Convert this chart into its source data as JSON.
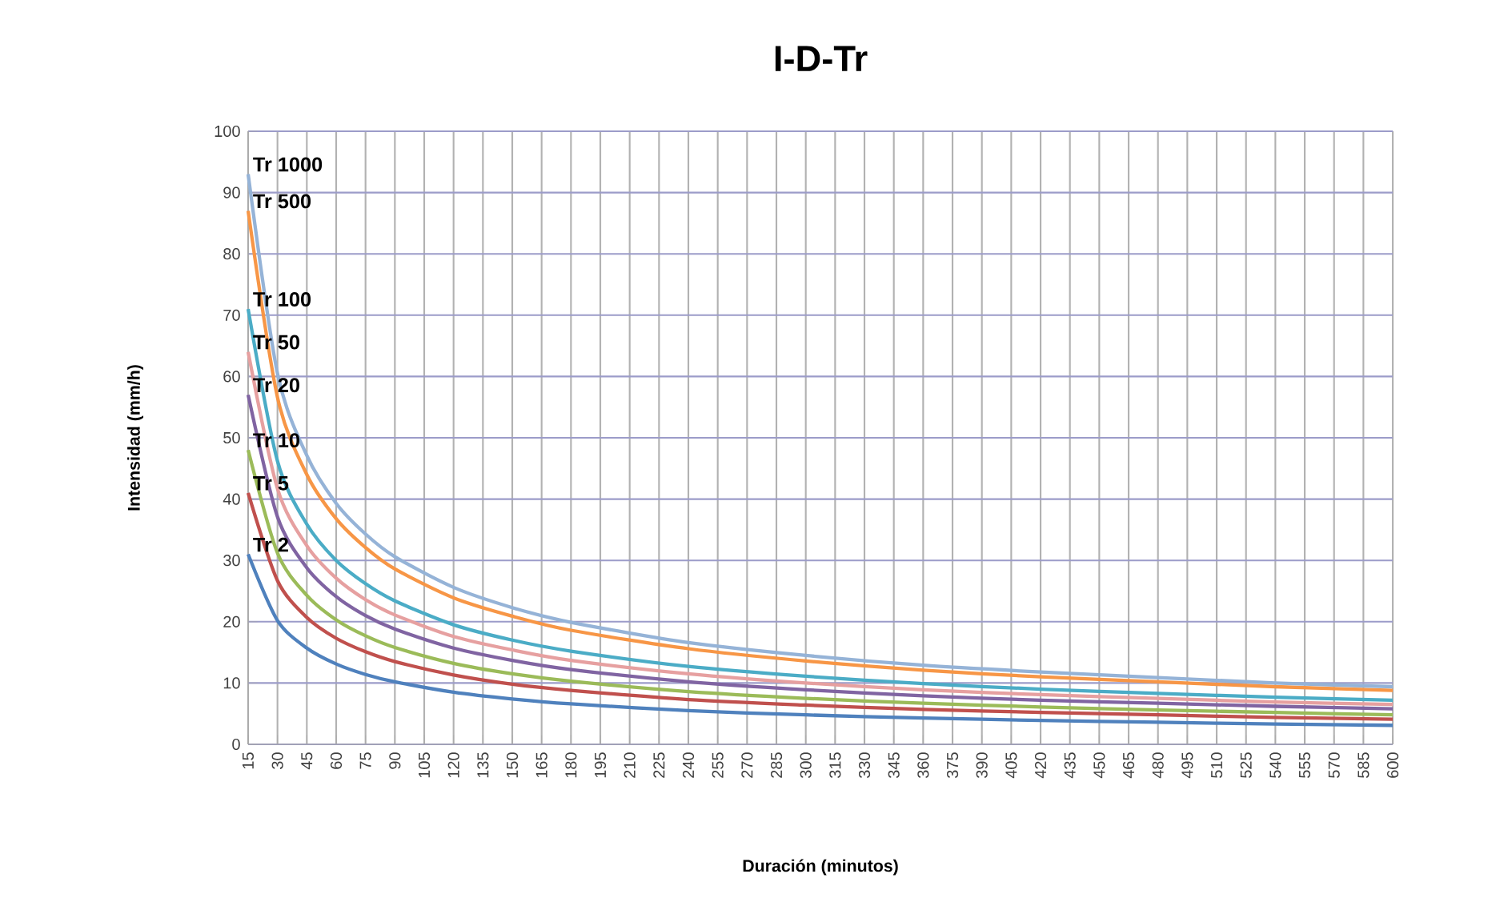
{
  "chart_data": {
    "type": "line",
    "title": "I-D-Tr",
    "xlabel": "Duración (minutos)",
    "ylabel": "Intensidad (mm/h)",
    "x": [
      15,
      30,
      45,
      60,
      75,
      90,
      120,
      150,
      180,
      240,
      300,
      360,
      420,
      480,
      540,
      600
    ],
    "xlim": [
      15,
      600
    ],
    "xticks": [
      15,
      30,
      45,
      60,
      75,
      90,
      105,
      120,
      135,
      150,
      165,
      180,
      195,
      210,
      225,
      240,
      255,
      270,
      285,
      300,
      315,
      330,
      345,
      360,
      375,
      390,
      405,
      420,
      435,
      450,
      465,
      480,
      495,
      510,
      525,
      540,
      555,
      570,
      585,
      600
    ],
    "ylim": [
      0,
      100
    ],
    "yticks": [
      0,
      10,
      20,
      30,
      40,
      50,
      60,
      70,
      80,
      90,
      100
    ],
    "grid": true,
    "series": [
      {
        "name": "Tr 2",
        "color": "#4f81bd",
        "values": [
          31,
          20.2,
          15.7,
          13.1,
          11.4,
          10.2,
          8.5,
          7.4,
          6.6,
          5.5,
          4.8,
          4.3,
          3.9,
          3.6,
          3.3,
          3.1
        ]
      },
      {
        "name": "Tr 5",
        "color": "#c0504d",
        "values": [
          41,
          26.7,
          20.7,
          17.3,
          15.1,
          13.5,
          11.3,
          9.8,
          8.8,
          7.3,
          6.4,
          5.7,
          5.2,
          4.8,
          4.4,
          4.1
        ]
      },
      {
        "name": "Tr 10",
        "color": "#9bbb59",
        "values": [
          48,
          31.2,
          24.3,
          20.3,
          17.7,
          15.8,
          13.2,
          11.5,
          10.3,
          8.6,
          7.5,
          6.7,
          6.1,
          5.6,
          5.2,
          4.8
        ]
      },
      {
        "name": "Tr 20",
        "color": "#8064a2",
        "values": [
          57,
          37.1,
          28.8,
          24.1,
          21.0,
          18.8,
          15.7,
          13.7,
          12.2,
          10.2,
          8.9,
          7.9,
          7.2,
          6.7,
          6.2,
          5.8
        ]
      },
      {
        "name": "Tr 50",
        "color": "#e6a0a0",
        "values": [
          64,
          41.7,
          32.4,
          27.1,
          23.6,
          21.1,
          17.6,
          15.4,
          13.7,
          11.5,
          10.0,
          8.9,
          8.1,
          7.5,
          6.9,
          6.5
        ]
      },
      {
        "name": "Tr 100",
        "color": "#4bacc6",
        "values": [
          71,
          46.2,
          35.9,
          30.0,
          26.2,
          23.4,
          19.5,
          17.0,
          15.2,
          12.7,
          11.1,
          9.9,
          9.0,
          8.3,
          7.7,
          7.2
        ]
      },
      {
        "name": "Tr 500",
        "color": "#f79646",
        "values": [
          87,
          56.6,
          44.0,
          36.8,
          32.1,
          28.6,
          23.9,
          20.9,
          18.6,
          15.6,
          13.6,
          12.1,
          11.0,
          10.2,
          9.4,
          8.8
        ]
      },
      {
        "name": "Tr 1000",
        "color": "#95b3d7",
        "values": [
          93,
          60.5,
          47.1,
          39.3,
          34.3,
          30.6,
          25.6,
          22.3,
          19.9,
          16.6,
          14.5,
          12.9,
          11.8,
          10.9,
          10.0,
          9.4
        ]
      }
    ]
  }
}
